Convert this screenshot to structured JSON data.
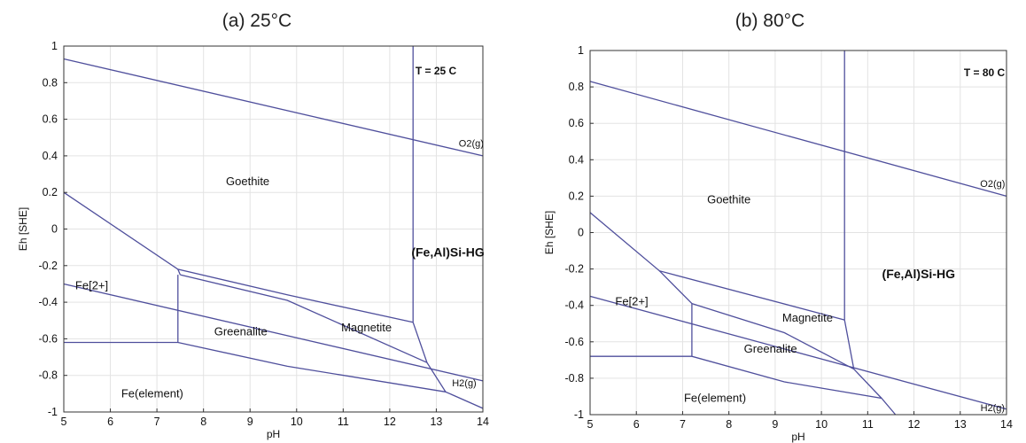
{
  "chart_data": [
    {
      "type": "line",
      "title": "(a) 25°C",
      "xlabel": "pH",
      "ylabel": "Eh [SHE]",
      "xlim": [
        5,
        14
      ],
      "ylim": [
        -1,
        1
      ],
      "xticks": [
        "5",
        "6",
        "7",
        "8",
        "9",
        "10",
        "11",
        "12",
        "13",
        "14"
      ],
      "yticks": [
        "1",
        "0.8",
        "0.6",
        "0.4",
        "0.2",
        "0",
        "-0.2",
        "-0.4",
        "-0.6",
        "-0.8",
        "-1"
      ],
      "grid": true,
      "line_color": "#4f4f9c",
      "temperature_label": "T = 25 C",
      "series": [
        {
          "x": [
            5,
            14
          ],
          "y": [
            0.93,
            0.4
          ]
        },
        {
          "x": [
            5,
            14
          ],
          "y": [
            -0.3,
            -0.83
          ]
        },
        {
          "x": [
            5,
            7.45,
            9.8,
            12.5
          ],
          "y": [
            0.2,
            -0.22,
            -0.36,
            -0.51
          ]
        },
        {
          "x": [
            7.5,
            9.8,
            12.8
          ],
          "y": [
            -0.25,
            -0.39,
            -0.73
          ]
        },
        {
          "x": [
            5,
            7.45,
            9.8,
            13.2
          ],
          "y": [
            -0.62,
            -0.62,
            -0.75,
            -0.89
          ]
        },
        {
          "x": [
            7.45,
            7.5
          ],
          "y": [
            -0.22,
            -0.25
          ]
        },
        {
          "x": [
            7.45,
            7.45
          ],
          "y": [
            -0.25,
            -0.62
          ]
        },
        {
          "x": [
            12.5,
            12.5
          ],
          "y": [
            1,
            -0.51
          ]
        },
        {
          "x": [
            12.5,
            12.8,
            13.2,
            14
          ],
          "y": [
            -0.51,
            -0.73,
            -0.89,
            -0.98
          ]
        }
      ],
      "labels": [
        {
          "text": "Goethite",
          "x": 8.95,
          "y": 0.24,
          "bold": false
        },
        {
          "text": "(Fe,Al)Si-HG",
          "x": 13.25,
          "y": -0.15,
          "bold": true
        },
        {
          "text": "Fe[2+]",
          "x": 5.6,
          "y": -0.33,
          "bold": false
        },
        {
          "text": "Greenalite",
          "x": 8.8,
          "y": -0.58,
          "bold": false
        },
        {
          "text": "Magnetite",
          "x": 11.5,
          "y": -0.56,
          "bold": false
        },
        {
          "text": "Fe(element)",
          "x": 6.9,
          "y": -0.92,
          "bold": false
        },
        {
          "text": "O2(g)",
          "x": 13.75,
          "y": 0.45,
          "bold": false
        },
        {
          "text": "H2(g)",
          "x": 13.6,
          "y": -0.86,
          "bold": false
        }
      ]
    },
    {
      "type": "line",
      "title": "(b) 80°C",
      "xlabel": "pH",
      "ylabel": "Eh [SHE]",
      "xlim": [
        5,
        14
      ],
      "ylim": [
        -1,
        1
      ],
      "xticks": [
        "5",
        "6",
        "7",
        "8",
        "9",
        "10",
        "11",
        "12",
        "13",
        "14"
      ],
      "yticks": [
        "1",
        "0.8",
        "0.6",
        "0.4",
        "0.2",
        "0",
        "-0.2",
        "-0.4",
        "-0.6",
        "-0.8",
        "-1"
      ],
      "grid": true,
      "line_color": "#4f4f9c",
      "temperature_label": "T = 80 C",
      "series": [
        {
          "x": [
            5,
            14
          ],
          "y": [
            0.83,
            0.2
          ]
        },
        {
          "x": [
            5,
            14
          ],
          "y": [
            -0.35,
            -0.97
          ]
        },
        {
          "x": [
            5,
            6.5,
            10.5
          ],
          "y": [
            0.11,
            -0.21,
            -0.48
          ]
        },
        {
          "x": [
            7.2,
            9.2,
            10.7
          ],
          "y": [
            -0.39,
            -0.55,
            -0.75
          ]
        },
        {
          "x": [
            5,
            7.2,
            9.2,
            11.3,
            11.6
          ],
          "y": [
            -0.68,
            -0.68,
            -0.82,
            -0.91,
            -1.0
          ]
        },
        {
          "x": [
            6.5,
            7.2
          ],
          "y": [
            -0.21,
            -0.39
          ]
        },
        {
          "x": [
            7.2,
            7.2
          ],
          "y": [
            -0.39,
            -0.68
          ]
        },
        {
          "x": [
            10.5,
            10.5
          ],
          "y": [
            1,
            -0.48
          ]
        },
        {
          "x": [
            10.5,
            10.7,
            11.3
          ],
          "y": [
            -0.48,
            -0.75,
            -0.91
          ]
        }
      ],
      "labels": [
        {
          "text": "Goethite",
          "x": 8.0,
          "y": 0.16,
          "bold": false
        },
        {
          "text": "(Fe,Al)Si-HG",
          "x": 12.1,
          "y": -0.25,
          "bold": true
        },
        {
          "text": "Fe[2+]",
          "x": 5.9,
          "y": -0.4,
          "bold": false
        },
        {
          "text": "Magnetite",
          "x": 9.7,
          "y": -0.49,
          "bold": false
        },
        {
          "text": "Greenalite",
          "x": 8.9,
          "y": -0.66,
          "bold": false
        },
        {
          "text": "Fe(element)",
          "x": 7.7,
          "y": -0.93,
          "bold": false
        },
        {
          "text": "O2(g)",
          "x": 13.7,
          "y": 0.25,
          "bold": false
        },
        {
          "text": "H2(g)",
          "x": 13.7,
          "y": -0.98,
          "bold": false
        }
      ]
    }
  ]
}
